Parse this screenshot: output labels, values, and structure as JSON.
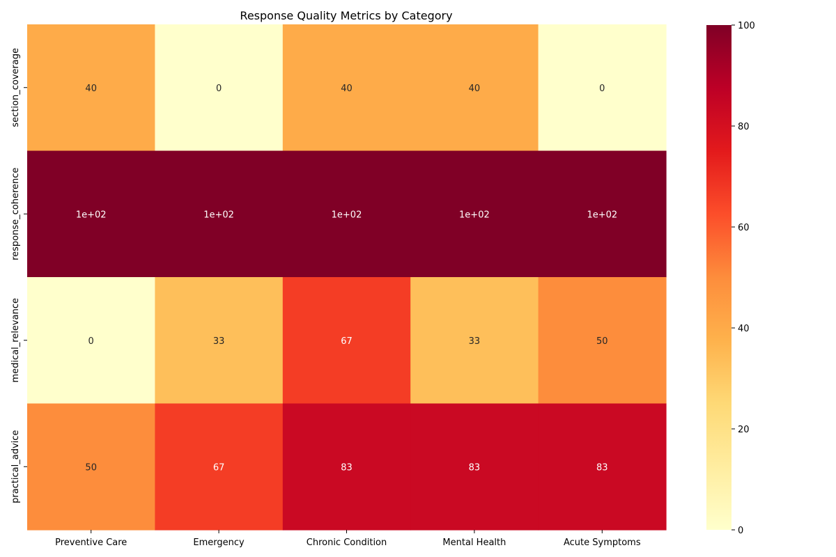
{
  "chart_data": {
    "type": "heatmap",
    "title": "Response Quality Metrics by Category",
    "xlabel": "",
    "ylabel": "",
    "columns": [
      "Preventive Care",
      "Emergency",
      "Chronic Condition",
      "Mental Health",
      "Acute Symptoms"
    ],
    "rows": [
      "section_coverage",
      "response_coherence",
      "medical_relevance",
      "practical_advice"
    ],
    "values": [
      [
        40,
        0,
        40,
        40,
        0
      ],
      [
        100,
        100,
        100,
        100,
        100
      ],
      [
        0,
        33.3,
        66.7,
        33.3,
        50
      ],
      [
        50,
        66.7,
        83.3,
        83.3,
        83.3
      ]
    ],
    "annotations": [
      [
        "40",
        "0",
        "40",
        "40",
        "0"
      ],
      [
        "1e+02",
        "1e+02",
        "1e+02",
        "1e+02",
        "1e+02"
      ],
      [
        "0",
        "33",
        "67",
        "33",
        "50"
      ],
      [
        "50",
        "67",
        "83",
        "83",
        "83"
      ]
    ],
    "colorbar": {
      "range": [
        0,
        100
      ],
      "ticks": [
        0,
        20,
        40,
        60,
        80,
        100
      ],
      "colormap": "YlOrRd"
    }
  }
}
